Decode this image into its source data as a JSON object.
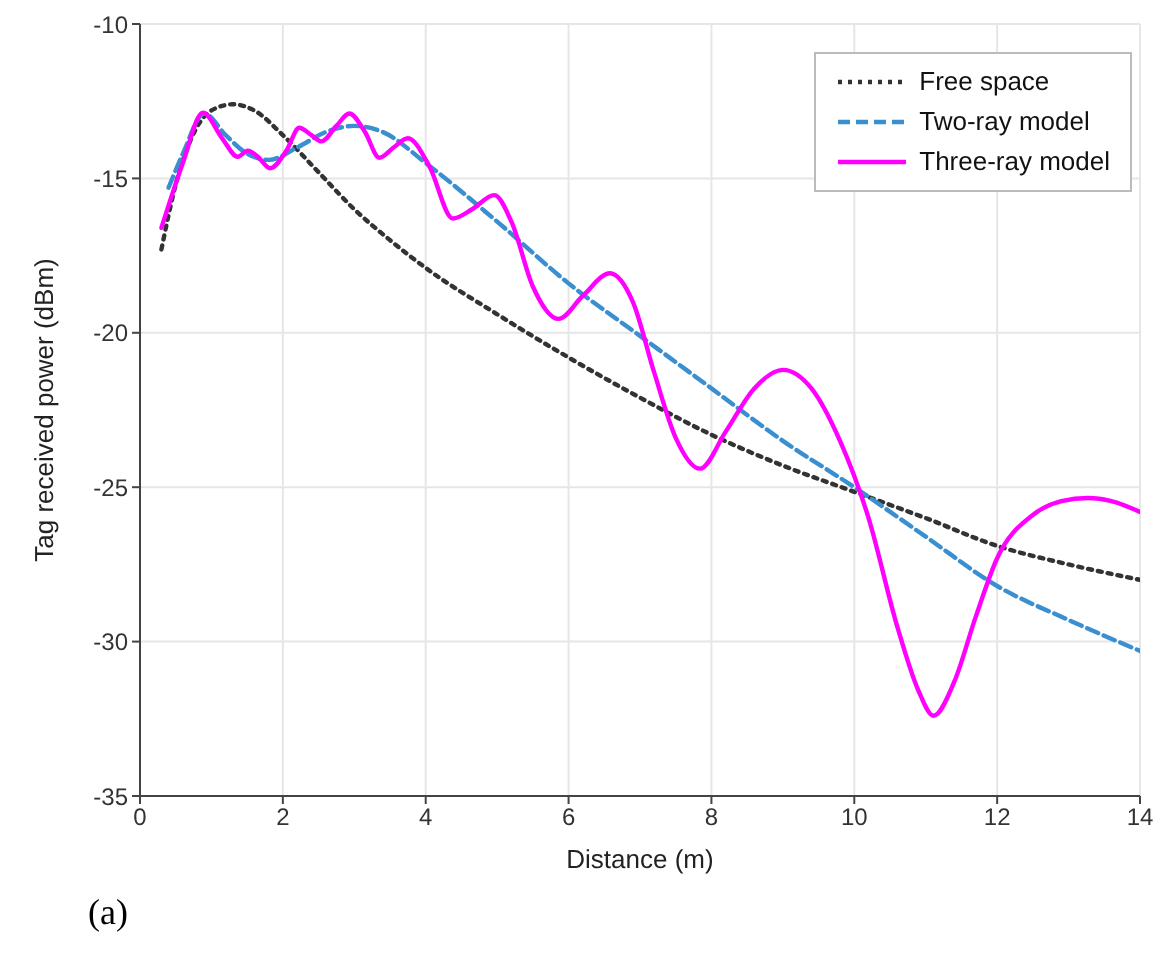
{
  "chart_data": {
    "type": "line",
    "xlabel": "Distance (m)",
    "ylabel": "Tag received power (dBm)",
    "annotations": [
      "(a)"
    ],
    "xlim": [
      0,
      14
    ],
    "xticks": [
      0,
      2,
      4,
      6,
      8,
      10,
      12,
      14
    ],
    "ylim": [
      -35,
      -10
    ],
    "yticks": [
      -35,
      -30,
      -25,
      -20,
      -15,
      -10
    ],
    "grid": true,
    "legend": "top right",
    "marker": "none",
    "series": [
      {
        "name": "Free space",
        "color": "#333333",
        "line_style": "dotted",
        "x": [
          0.3,
          0.5,
          0.7,
          1,
          1.3,
          1.6,
          2,
          2.5,
          3,
          3.5,
          4,
          5,
          6,
          7,
          8,
          9,
          10,
          11,
          12,
          13,
          14
        ],
        "values": [
          -17.3,
          -15.2,
          -13.8,
          -12.8,
          -12.6,
          -12.8,
          -13.6,
          -14.8,
          -16,
          -17,
          -17.9,
          -19.4,
          -20.8,
          -22.1,
          -23.3,
          -24.3,
          -25.15,
          -26,
          -26.9,
          -27.5,
          -28
        ]
      },
      {
        "name": "Two-ray model",
        "color": "#3a8fd0",
        "line_style": "dashed",
        "x": [
          0.4,
          0.6,
          0.9,
          1.2,
          1.5,
          1.8,
          2.2,
          2.6,
          3,
          3.4,
          4,
          5,
          6,
          7,
          8,
          9,
          10,
          11,
          12,
          13,
          14
        ],
        "values": [
          -15.3,
          -14.2,
          -12.9,
          -13.6,
          -14.2,
          -14.4,
          -14,
          -13.5,
          -13.3,
          -13.5,
          -14.5,
          -16.4,
          -18.4,
          -20.1,
          -21.8,
          -23.5,
          -25,
          -26.6,
          -28.2,
          -29.3,
          -30.3
        ]
      },
      {
        "name": "Three-ray model",
        "color": "#ff00ff",
        "line_style": "solid",
        "x": [
          0.3,
          0.6,
          0.88,
          1.15,
          1.37,
          1.51,
          1.65,
          1.82,
          2.05,
          2.23,
          2.4,
          2.54,
          2.75,
          2.93,
          3.15,
          3.35,
          3.55,
          3.75,
          4.05,
          4.38,
          4.65,
          4.96,
          5.2,
          5.5,
          5.86,
          6.2,
          6.58,
          6.9,
          7.2,
          7.5,
          7.84,
          8.2,
          8.6,
          9,
          9.4,
          9.8,
          10.2,
          10.6,
          10.9,
          11.11,
          11.4,
          11.7,
          12,
          12.5,
          12.9,
          13.27,
          13.6,
          14
        ],
        "values": [
          -16.6,
          -14.5,
          -12.87,
          -13.7,
          -14.3,
          -14.1,
          -14.3,
          -14.67,
          -14.1,
          -13.36,
          -13.6,
          -13.8,
          -13.3,
          -12.9,
          -13.5,
          -14.33,
          -14,
          -13.7,
          -14.6,
          -16.3,
          -16,
          -15.54,
          -16.4,
          -18.5,
          -19.55,
          -18.8,
          -18.07,
          -19,
          -21.3,
          -23.4,
          -24.4,
          -23.2,
          -21.8,
          -21.2,
          -21.8,
          -23.5,
          -26,
          -29.5,
          -31.6,
          -32.4,
          -31.3,
          -29.2,
          -27.3,
          -25.9,
          -25.45,
          -25.35,
          -25.45,
          -25.8
        ]
      }
    ]
  }
}
